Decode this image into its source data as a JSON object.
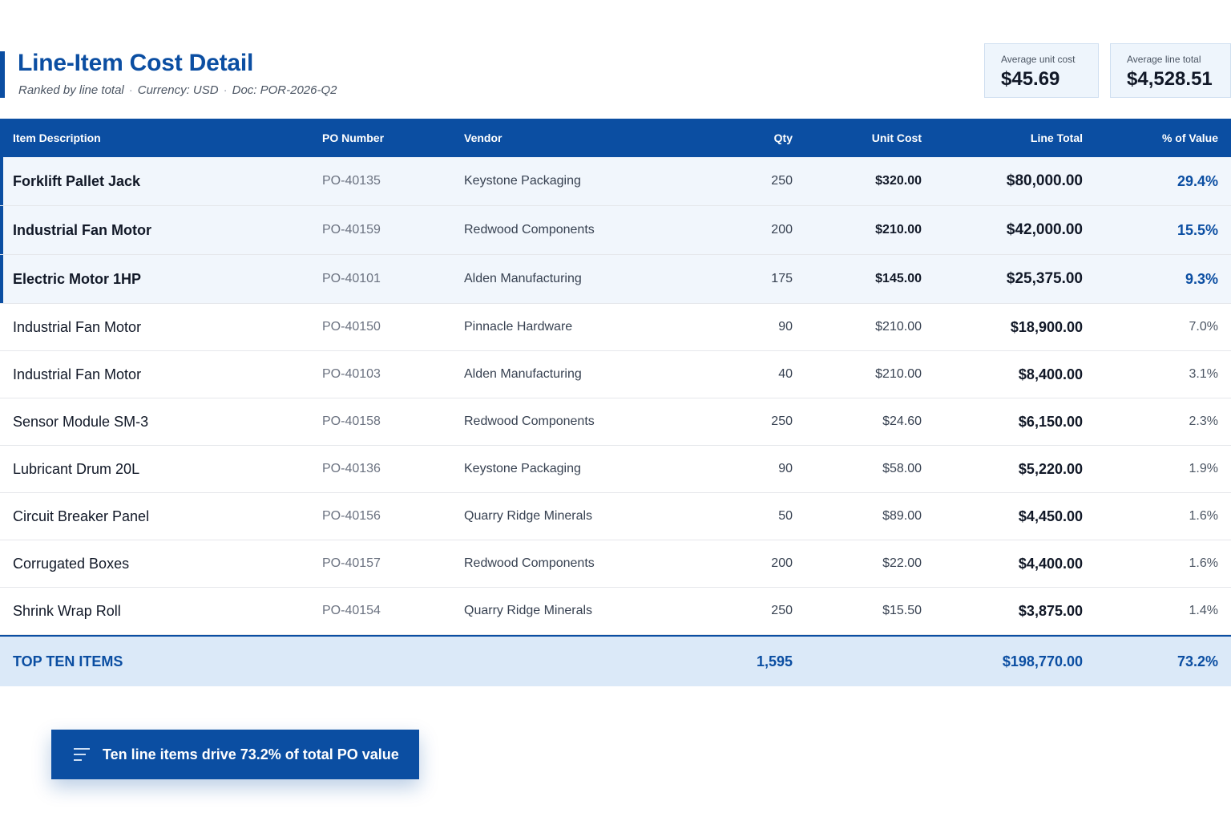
{
  "header": {
    "title": "Line-Item Cost Detail",
    "subtitle_ranked": "Ranked by line total",
    "subtitle_currency": "Currency: USD",
    "subtitle_doc": "Doc: POR-2026-Q2",
    "separator": "·"
  },
  "kpis": [
    {
      "label": "Average unit cost",
      "value": "$45.69"
    },
    {
      "label": "Average line total",
      "value": "$4,528.51"
    }
  ],
  "table": {
    "columns": [
      "Item Description",
      "PO Number",
      "Vendor",
      "Qty",
      "Unit Cost",
      "Line Total",
      "% of Value"
    ],
    "rows": [
      {
        "desc": "Forklift Pallet Jack",
        "po": "PO-40135",
        "vendor": "Keystone Packaging",
        "qty": "250",
        "unit": "$320.00",
        "total": "$80,000.00",
        "pct": "29.4%"
      },
      {
        "desc": "Industrial Fan Motor",
        "po": "PO-40159",
        "vendor": "Redwood Components",
        "qty": "200",
        "unit": "$210.00",
        "total": "$42,000.00",
        "pct": "15.5%"
      },
      {
        "desc": "Electric Motor 1HP",
        "po": "PO-40101",
        "vendor": "Alden Manufacturing",
        "qty": "175",
        "unit": "$145.00",
        "total": "$25,375.00",
        "pct": "9.3%"
      },
      {
        "desc": "Industrial Fan Motor",
        "po": "PO-40150",
        "vendor": "Pinnacle Hardware",
        "qty": "90",
        "unit": "$210.00",
        "total": "$18,900.00",
        "pct": "7.0%"
      },
      {
        "desc": "Industrial Fan Motor",
        "po": "PO-40103",
        "vendor": "Alden Manufacturing",
        "qty": "40",
        "unit": "$210.00",
        "total": "$8,400.00",
        "pct": "3.1%"
      },
      {
        "desc": "Sensor Module SM-3",
        "po": "PO-40158",
        "vendor": "Redwood Components",
        "qty": "250",
        "unit": "$24.60",
        "total": "$6,150.00",
        "pct": "2.3%"
      },
      {
        "desc": "Lubricant Drum 20L",
        "po": "PO-40136",
        "vendor": "Keystone Packaging",
        "qty": "90",
        "unit": "$58.00",
        "total": "$5,220.00",
        "pct": "1.9%"
      },
      {
        "desc": "Circuit Breaker Panel",
        "po": "PO-40156",
        "vendor": "Quarry Ridge Minerals",
        "qty": "50",
        "unit": "$89.00",
        "total": "$4,450.00",
        "pct": "1.6%"
      },
      {
        "desc": "Corrugated Boxes",
        "po": "PO-40157",
        "vendor": "Redwood Components",
        "qty": "200",
        "unit": "$22.00",
        "total": "$4,400.00",
        "pct": "1.6%"
      },
      {
        "desc": "Shrink Wrap Roll",
        "po": "PO-40154",
        "vendor": "Quarry Ridge Minerals",
        "qty": "250",
        "unit": "$15.50",
        "total": "$3,875.00",
        "pct": "1.4%"
      }
    ],
    "footer": {
      "label": "TOP TEN ITEMS",
      "qty": "1,595",
      "total": "$198,770.00",
      "pct": "73.2%"
    }
  },
  "callout": {
    "icon": "sort-lines-icon",
    "text": "Ten line items drive 73.2% of total PO value"
  },
  "colors": {
    "accent": "#0b4ea2",
    "highlight_row_bg": "#f1f6fc",
    "footer_bg": "#dbe9f8"
  }
}
